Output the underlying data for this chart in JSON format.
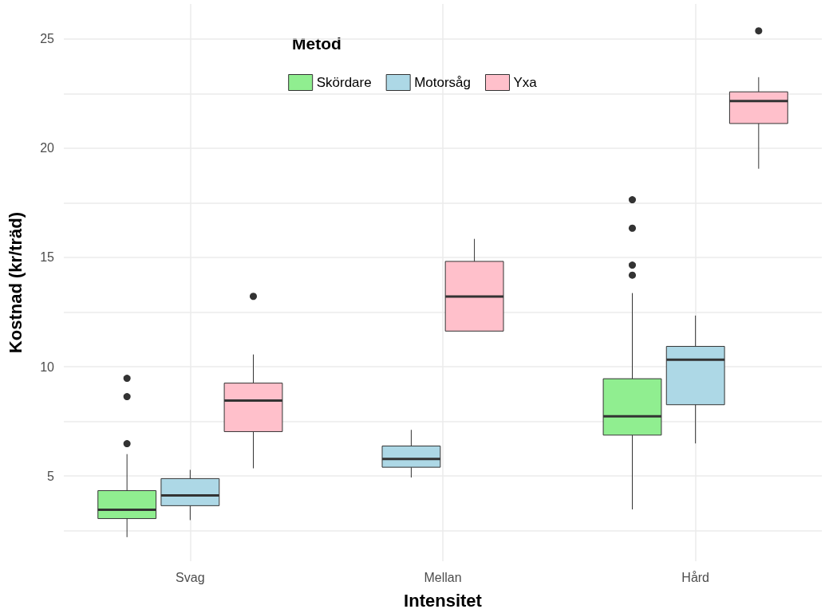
{
  "chart_data": {
    "type": "box",
    "xlabel": "Intensitet",
    "ylabel": "Kostnad (kr/träd)",
    "legend_title": "Metod",
    "legend": "top",
    "grid": true,
    "categories": [
      "Svag",
      "Mellan",
      "Hård"
    ],
    "ylim": [
      1.1,
      26.6
    ],
    "yticks": [
      {
        "value": 2.5,
        "label": null
      },
      5,
      {
        "value": 7.5,
        "label": null
      },
      10,
      {
        "value": 12.5,
        "label": null
      },
      15,
      {
        "value": 17.5,
        "label": null
      },
      20,
      {
        "value": 22.5,
        "label": null
      },
      25
    ],
    "series": [
      {
        "name": "Skördare",
        "color": "#90ee90",
        "boxes": [
          {
            "low": 2.2,
            "q1": 3.05,
            "median": 3.45,
            "q3": 4.33,
            "high": 6.0,
            "outliers": [
              6.48,
              8.63,
              9.47
            ]
          },
          null,
          {
            "low": 3.47,
            "q1": 6.87,
            "median": 7.73,
            "q3": 9.45,
            "high": 13.37,
            "outliers": [
              14.19,
              14.65,
              16.34,
              17.64
            ]
          }
        ]
      },
      {
        "name": "Motorsåg",
        "color": "#add8e6",
        "boxes": [
          {
            "low": 2.98,
            "q1": 3.64,
            "median": 4.11,
            "q3": 4.88,
            "high": 5.28
          },
          {
            "low": 4.93,
            "q1": 5.4,
            "median": 5.78,
            "q3": 6.37,
            "high": 7.11
          },
          {
            "low": 6.49,
            "q1": 8.26,
            "median": 10.32,
            "q3": 10.93,
            "high": 12.34
          }
        ]
      },
      {
        "name": "Yxa",
        "color": "#ffc0cb",
        "boxes": [
          {
            "low": 5.35,
            "q1": 7.03,
            "median": 8.45,
            "q3": 9.25,
            "high": 10.56,
            "outliers": [
              13.22
            ]
          },
          {
            "low": 11.63,
            "q1": 11.63,
            "median": 13.21,
            "q3": 14.82,
            "high": 15.85
          },
          {
            "low": 19.06,
            "q1": 21.13,
            "median": 22.16,
            "q3": 22.58,
            "high": 23.25,
            "outliers": [
              25.37
            ]
          }
        ]
      }
    ]
  }
}
